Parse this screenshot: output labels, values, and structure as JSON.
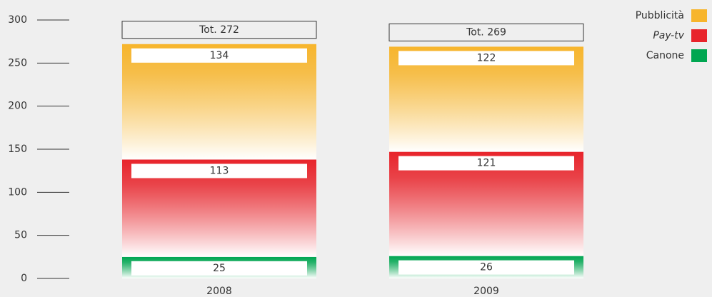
{
  "chart_data": {
    "type": "stacked_bar",
    "categories": [
      "2008",
      "2009"
    ],
    "series": [
      {
        "name": "Canone",
        "color": "#00a651",
        "values": [
          25,
          26
        ]
      },
      {
        "name": "Pay-tv",
        "color": "#e8242b",
        "italic": true,
        "values": [
          113,
          121
        ]
      },
      {
        "name": "Pubblicità",
        "color": "#f7b52c",
        "values": [
          134,
          122
        ]
      }
    ],
    "total_labels": [
      "Tot. 272",
      "Tot. 269"
    ],
    "ylim": [
      0,
      300
    ],
    "yticks": [
      0,
      50,
      100,
      150,
      200,
      250,
      300
    ],
    "legend": "top-right"
  }
}
